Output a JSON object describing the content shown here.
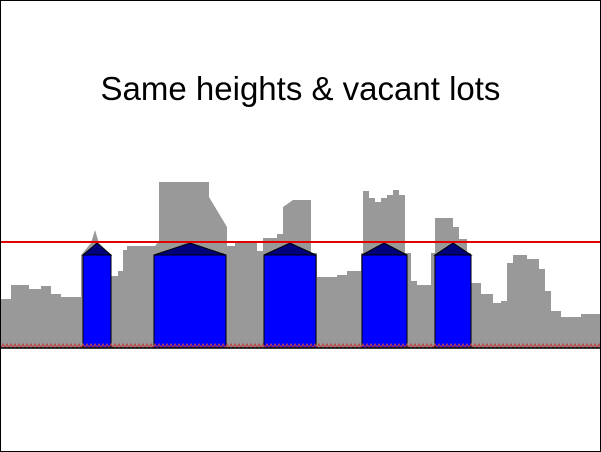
{
  "slide": {
    "title": "Same heights & vacant lots"
  },
  "colors": {
    "skyline": "#999999",
    "building_fill": "#0000ff",
    "roof_fill": "#00007a",
    "height_line": "#e00000",
    "ground_line": "#000000",
    "ground_hatch": "#c04040"
  },
  "icons": {
    "skyline": "city-skyline-silhouette",
    "building": "uniform-building-block"
  }
}
